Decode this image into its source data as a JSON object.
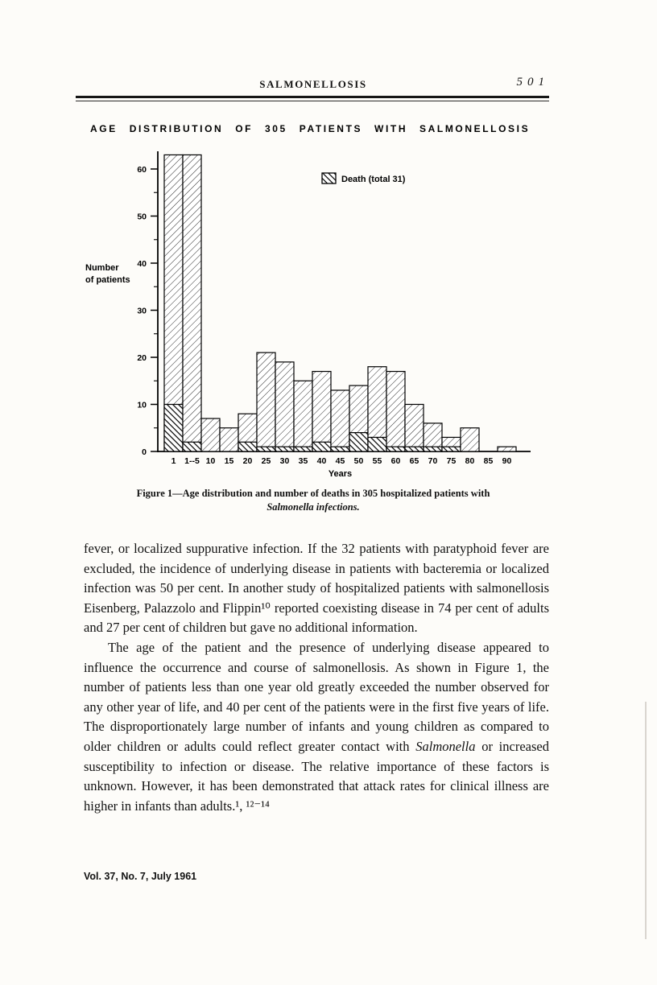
{
  "header": {
    "running_title": "SALMONELLOSIS",
    "page_number": "501"
  },
  "chart_data": {
    "type": "bar",
    "title": "AGE DISTRIBUTION OF 305 PATIENTS WITH SALMONELLOSIS",
    "xlabel": "Years",
    "ylabel": "Number of patients",
    "legend": "Death (total 31)",
    "legend_position": "upper-middle",
    "grid": false,
    "ylim": [
      0,
      65
    ],
    "yticks": [
      0,
      10,
      20,
      30,
      40,
      50,
      60
    ],
    "categories": [
      "1",
      "1--5",
      "10",
      "15",
      "20",
      "25",
      "30",
      "35",
      "40",
      "45",
      "50",
      "55",
      "60",
      "65",
      "70",
      "75",
      "80",
      "85",
      "90"
    ],
    "series": [
      {
        "name": "Patients",
        "values": [
          63,
          63,
          7,
          5,
          8,
          21,
          19,
          15,
          17,
          13,
          14,
          18,
          17,
          10,
          6,
          3,
          5,
          0,
          1
        ]
      },
      {
        "name": "Deaths",
        "values": [
          10,
          2,
          0,
          0,
          2,
          1,
          1,
          1,
          2,
          1,
          4,
          3,
          1,
          1,
          1,
          1,
          0,
          0,
          0
        ]
      }
    ]
  },
  "figure_caption": {
    "line1": "Figure 1—Age distribution and number of deaths in 305 hospitalized patients with",
    "line2": "Salmonella infections."
  },
  "body": {
    "paragraph1": "fever, or localized suppurative infection. If the 32 patients with paratyphoid fever are excluded, the incidence of underlying disease in patients with bacteremia or localized infection was 50 per cent. In another study of hospitalized patients with salmonellosis Eisenberg, Palazzolo and Flippin¹⁰ reported coexisting disease in 74 per cent of adults and 27 per cent of children but gave no additional information.",
    "paragraph2_before_italic": "The age of the patient and the presence of underlying disease appeared to influence the occurrence and course of salmonellosis. As shown in Figure 1, the number of patients less than one year old greatly exceeded the number observed for any other year of life, and 40 per cent of the patients were in the first five years of life. The disproportionately large number of infants and young children as compared to older children or adults could reflect greater contact with ",
    "paragraph2_italic": "Salmonella",
    "paragraph2_after_italic": " or increased susceptibility to infection or disease. The relative importance of these factors is unknown. However, it has been demonstrated that attack rates for clinical illness are higher in infants than adults.¹, ¹²⁻¹⁴"
  },
  "footer": {
    "text": "Vol. 37, No. 7, July 1961"
  },
  "colors": {
    "ink": "#141414",
    "paper": "#fdfcf9"
  }
}
